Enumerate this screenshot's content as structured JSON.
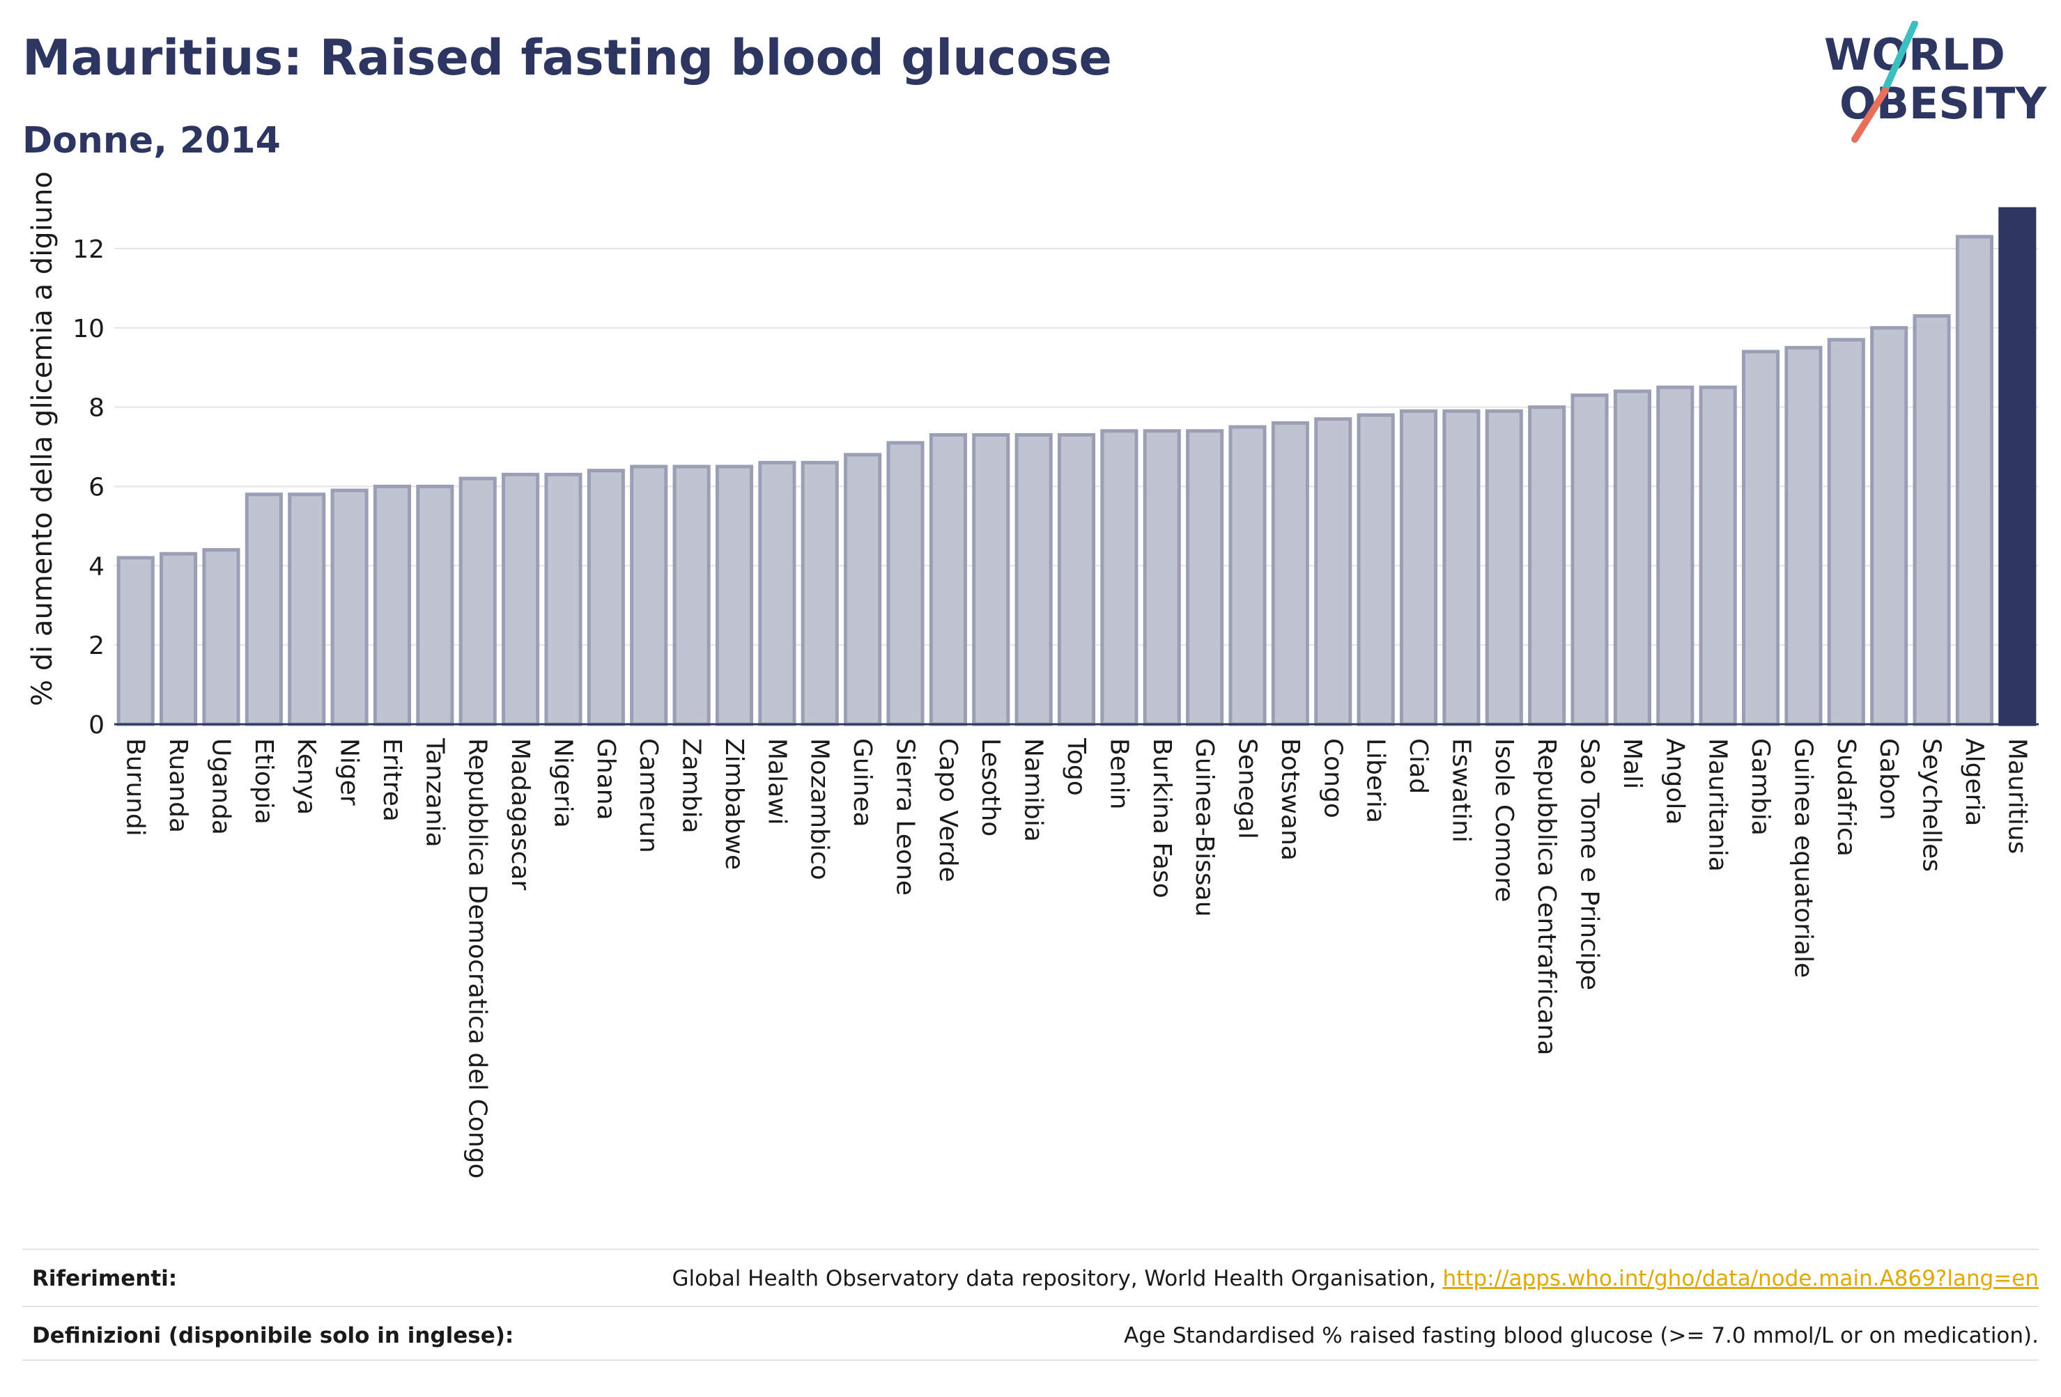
{
  "header": {
    "title": "Mauritius: Raised fasting blood glucose",
    "subtitle": "Donne, 2014"
  },
  "logo": {
    "line1": "WORLD",
    "line2": "OBESITY",
    "accent_teal": "#3bbfbf",
    "accent_coral": "#e8705a"
  },
  "colors": {
    "bar_fill": "#c0c3d0",
    "bar_stroke": "#9a9fb5",
    "highlight_fill": "#2d3561",
    "text_dark": "#2d3561",
    "link": "#e0a800"
  },
  "chart_data": {
    "type": "bar",
    "title": "",
    "xlabel": "",
    "ylabel": "% di aumento della glicemia a digiuno",
    "ylim": [
      0,
      13
    ],
    "yticks": [
      0,
      2,
      4,
      6,
      8,
      10,
      12
    ],
    "grid": true,
    "highlight": "Mauritius",
    "categories": [
      "Burundi",
      "Ruanda",
      "Uganda",
      "Etiopia",
      "Kenya",
      "Niger",
      "Eritrea",
      "Tanzania",
      "Repubblica Democratica del Congo",
      "Madagascar",
      "Nigeria",
      "Ghana",
      "Camerun",
      "Zambia",
      "Zimbabwe",
      "Malawi",
      "Mozambico",
      "Guinea",
      "Sierra Leone",
      "Capo Verde",
      "Lesotho",
      "Namibia",
      "Togo",
      "Benin",
      "Burkina Faso",
      "Guinea-Bissau",
      "Senegal",
      "Botswana",
      "Congo",
      "Liberia",
      "Ciad",
      "Eswatini",
      "Isole Comore",
      "Repubblica Centrafricana",
      "Sao Tome e Principe",
      "Mali",
      "Angola",
      "Mauritania",
      "Gambia",
      "Guinea equatoriale",
      "Sudafrica",
      "Gabon",
      "Seychelles",
      "Algeria",
      "Mauritius"
    ],
    "values": [
      4.2,
      4.3,
      4.4,
      5.8,
      5.8,
      5.9,
      6.0,
      6.0,
      6.2,
      6.3,
      6.3,
      6.4,
      6.5,
      6.5,
      6.5,
      6.6,
      6.6,
      6.8,
      7.1,
      7.3,
      7.3,
      7.3,
      7.3,
      7.4,
      7.4,
      7.4,
      7.5,
      7.6,
      7.7,
      7.8,
      7.9,
      7.9,
      7.9,
      8.0,
      8.3,
      8.4,
      8.5,
      8.5,
      9.4,
      9.5,
      9.7,
      10.0,
      10.3,
      12.3,
      13.0
    ]
  },
  "footer": {
    "references_label": "Riferimenti:",
    "references_text": "Global Health Observatory data repository, World Health Organisation, ",
    "references_link": "http://apps.who.int/gho/data/node.main.A869?lang=en",
    "definitions_label": "Definizioni (disponibile solo in inglese):",
    "definitions_text": "Age Standardised % raised fasting blood glucose (>= 7.0 mmol/L or on medication)."
  }
}
